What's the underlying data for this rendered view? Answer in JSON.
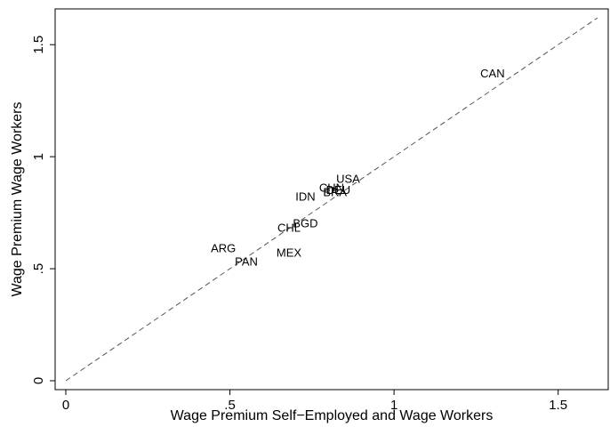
{
  "chart_data": {
    "type": "scatter",
    "xlabel": "Wage Premium Self−Employed and Wage Workers",
    "ylabel": "Wage Premium Wage Workers",
    "xlim": [
      0,
      1.62
    ],
    "ylim": [
      0,
      1.62
    ],
    "x_ticks": [
      {
        "value": 0,
        "label": "0"
      },
      {
        "value": 0.5,
        "label": ".5"
      },
      {
        "value": 1,
        "label": "1"
      },
      {
        "value": 1.5,
        "label": "1.5"
      }
    ],
    "y_ticks": [
      {
        "value": 0,
        "label": "0"
      },
      {
        "value": 0.5,
        "label": ".5"
      },
      {
        "value": 1,
        "label": "1"
      },
      {
        "value": 1.5,
        "label": "1.5"
      }
    ],
    "grid": false,
    "reference_line": {
      "style": "dashed",
      "x": [
        0,
        1.62
      ],
      "y": [
        0,
        1.62
      ]
    },
    "points": [
      {
        "label": "CAN",
        "x": 1.3,
        "y": 1.37
      },
      {
        "label": "USA",
        "x": 0.86,
        "y": 0.9
      },
      {
        "label": "CHN",
        "x": 0.81,
        "y": 0.86
      },
      {
        "label": "DEU",
        "x": 0.83,
        "y": 0.85
      },
      {
        "label": "BRA",
        "x": 0.82,
        "y": 0.84
      },
      {
        "label": "IDN",
        "x": 0.73,
        "y": 0.82
      },
      {
        "label": "BGD",
        "x": 0.73,
        "y": 0.7
      },
      {
        "label": "CHL",
        "x": 0.68,
        "y": 0.68
      },
      {
        "label": "MEX",
        "x": 0.68,
        "y": 0.57
      },
      {
        "label": "ARG",
        "x": 0.48,
        "y": 0.59
      },
      {
        "label": "PAN",
        "x": 0.55,
        "y": 0.53
      }
    ],
    "colors": {
      "axis": "#000000",
      "reference_line": "#555555",
      "text": "#000000"
    }
  }
}
